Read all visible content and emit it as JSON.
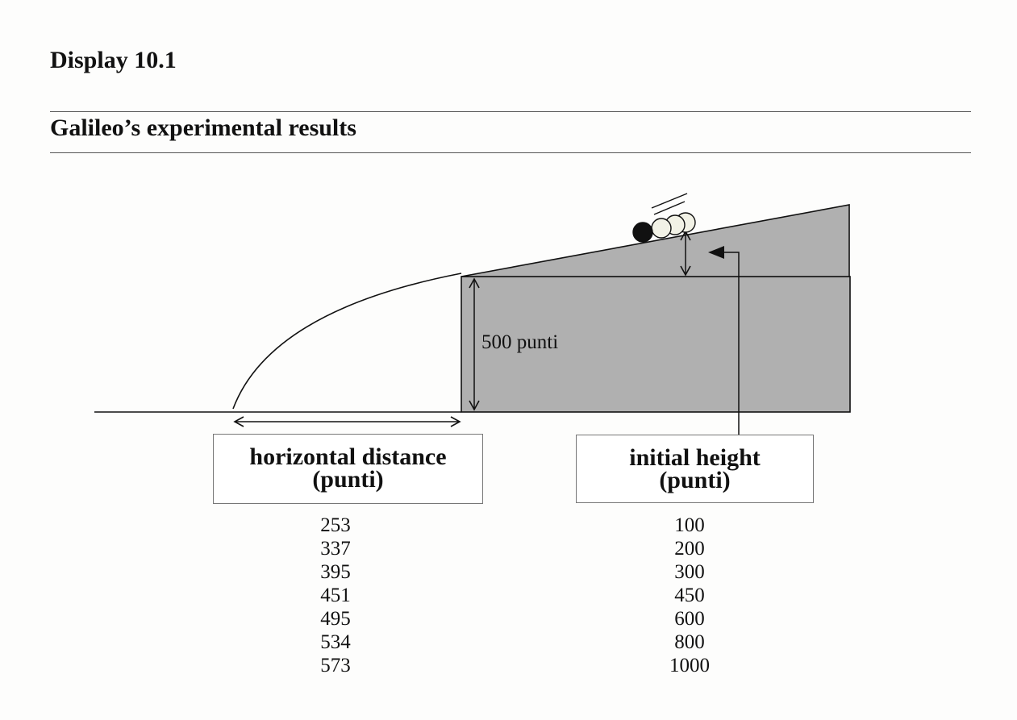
{
  "header": {
    "display_label": "Display 10.1",
    "title": "Galileo’s experimental results"
  },
  "diagram": {
    "wall_height_label": "500 punti",
    "ball_count": 4
  },
  "labels": {
    "distance_line1": "horizontal distance",
    "distance_line2": "(punti)",
    "height_line1": "initial height",
    "height_line2": "(punti)"
  },
  "chart_data": {
    "type": "table",
    "columns": [
      "horizontal distance (punti)",
      "initial height (punti)"
    ],
    "rows": [
      [
        "253",
        "100"
      ],
      [
        "337",
        "200"
      ],
      [
        "395",
        "300"
      ],
      [
        "451",
        "450"
      ],
      [
        "495",
        "600"
      ],
      [
        "534",
        "800"
      ],
      [
        "573",
        "1000"
      ]
    ]
  },
  "colors": {
    "block_fill": "#b0b0b0",
    "ball_dark": "#111111",
    "ball_light": "#f2f2e6"
  }
}
